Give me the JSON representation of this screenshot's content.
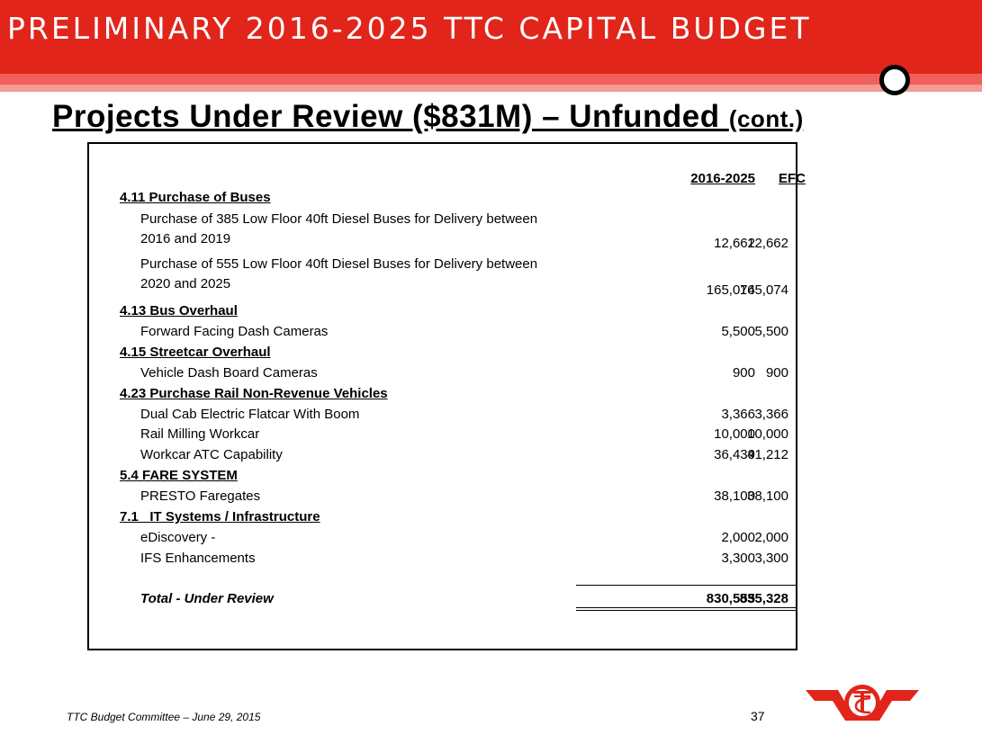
{
  "header": {
    "title": "PRELIMINARY 2016-2025 TTC CAPITAL BUDGET"
  },
  "subtitle": {
    "main": "Projects Under Review ($831M) – Unfunded",
    "suffix": "(cont.)"
  },
  "table": {
    "columns": [
      "2016-2025",
      "EFC"
    ],
    "rows": [
      {
        "type": "section",
        "label": "4.11 Purchase of Buses"
      },
      {
        "type": "item",
        "label_line1": "Purchase of 385 Low Floor 40ft Diesel Buses for Delivery between",
        "label_line2": "2016 and 2019",
        "v1": "12,662",
        "v2": "12,662"
      },
      {
        "type": "item",
        "label_line1": "Purchase of 555 Low Floor 40ft Diesel Buses for Delivery between",
        "label_line2": "2020 and 2025",
        "v1": "165,074",
        "v2": "165,074"
      },
      {
        "type": "section",
        "label": "4.13 Bus Overhaul"
      },
      {
        "type": "item",
        "label": "Forward Facing Dash Cameras",
        "v1": "5,500",
        "v2": "5,500"
      },
      {
        "type": "section",
        "label": "4.15 Streetcar Overhaul"
      },
      {
        "type": "item",
        "label": "Vehicle Dash Board Cameras",
        "v1": "900",
        "v2": "900"
      },
      {
        "type": "section",
        "label": "4.23 Purchase Rail Non-Revenue Vehicles"
      },
      {
        "type": "item",
        "label": "Dual Cab Electric Flatcar With Boom",
        "v1": "3,366",
        "v2": "3,366"
      },
      {
        "type": "item",
        "label": "Rail Milling Workcar",
        "v1": "10,000",
        "v2": "10,000"
      },
      {
        "type": "item",
        "label": "Workcar ATC Capability",
        "v1": "36,439",
        "v2": "41,212"
      },
      {
        "type": "section",
        "label": "5.4 FARE SYSTEM"
      },
      {
        "type": "item",
        "label": "PRESTO Faregates",
        "v1": "38,100",
        "v2": "38,100"
      },
      {
        "type": "section",
        "label": "7.1   IT Systems / Infrastructure"
      },
      {
        "type": "item",
        "label": "eDiscovery -",
        "v1": "2,000",
        "v2": "2,000"
      },
      {
        "type": "item",
        "label": "IFS Enhancements",
        "v1": "3,300",
        "v2": "3,300"
      }
    ],
    "total": {
      "label": "Total - Under Review",
      "v1": "830,555",
      "v2": "835,328"
    }
  },
  "footer": {
    "text": "TTC Budget Committee – June 29, 2015",
    "page": "37"
  },
  "colors": {
    "brand_red": "#e1251b",
    "stripe_light": "#f05f59",
    "stripe_pale": "#f39a95"
  },
  "icons": {
    "logo": "ttc-logo-icon"
  }
}
